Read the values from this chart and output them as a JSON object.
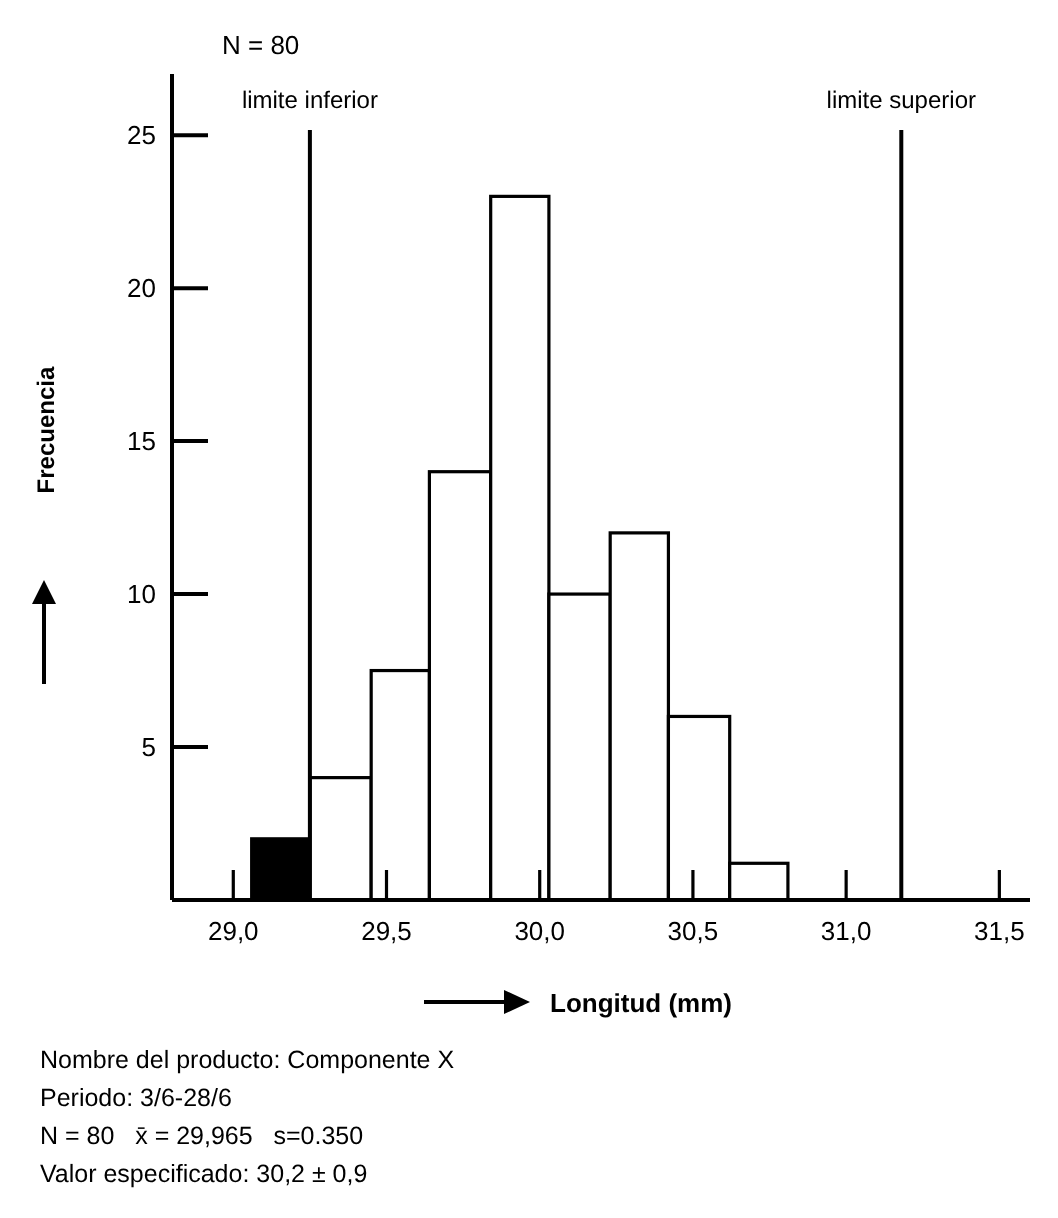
{
  "chart_data": {
    "type": "histogram",
    "xlabel": "Longitud (mm)",
    "ylabel": "Frecuencia",
    "bins": [
      29.06,
      29.25,
      29.45,
      29.64,
      29.84,
      30.03,
      30.23,
      30.42,
      30.62,
      30.81
    ],
    "values": [
      2,
      4,
      7.5,
      14,
      23,
      10,
      12,
      6,
      1.2
    ],
    "colors": [
      "#000000",
      "#ffffff",
      "#ffffff",
      "#ffffff",
      "#ffffff",
      "#ffffff",
      "#ffffff",
      "#ffffff",
      "#ffffff"
    ],
    "xlim": [
      28.8,
      31.6
    ],
    "ylim": [
      0,
      27
    ],
    "xticks": [
      {
        "value": 29,
        "label": "29,0"
      },
      {
        "value": 29.5,
        "label": "29,5"
      },
      {
        "value": 30,
        "label": "30,0"
      },
      {
        "value": 30.5,
        "label": "30,5"
      },
      {
        "value": 31,
        "label": "31,0"
      },
      {
        "value": 31.5,
        "label": "31,5"
      }
    ],
    "yticks": [
      5,
      10,
      15,
      20,
      25
    ],
    "grid": false,
    "ref_lines": [
      {
        "axis": "x",
        "value": 29.25,
        "label": "limite inferior"
      },
      {
        "axis": "x",
        "value": 31.18,
        "label": "limite superior"
      }
    ],
    "annotations": [
      "N = 80",
      "Nombre del producto: Componente X",
      "Periodo: 3/6-28/6",
      "N = 80   x̄ = 29,965   s=0.350",
      "Valor especificado: 30,2 ± 0,9"
    ]
  }
}
